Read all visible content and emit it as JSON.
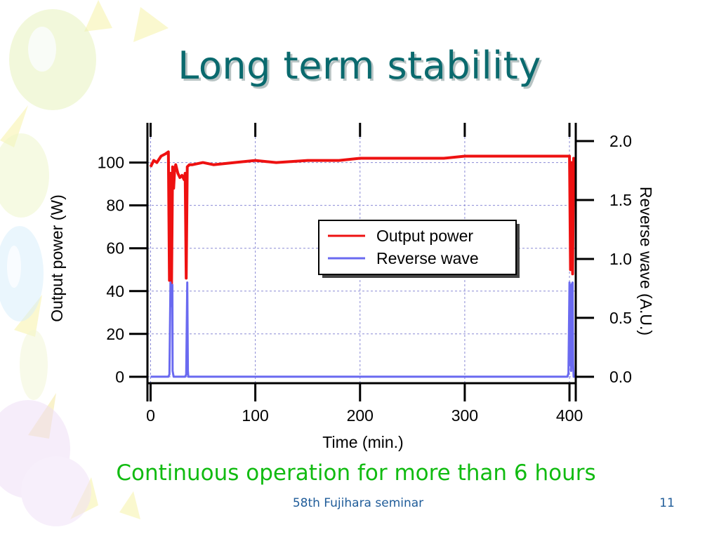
{
  "slide": {
    "title": "Long term stability",
    "caption": "Continuous operation for more than 6 hours",
    "footer_text": "58th Fujihara seminar",
    "page_number": "11"
  },
  "colors": {
    "title": "#0a6a6e",
    "caption": "#11bb11",
    "footer": "#1f5c99",
    "output_power": "#ee1111",
    "reverse_wave": "#6a6af0",
    "grid": "#8a8ad6"
  },
  "chart_data": {
    "type": "line",
    "title": "",
    "xlabel": "Time (min.)",
    "ylabel": "Output power (W)",
    "y2label": "Reverse wave (A.U.)",
    "xlim": [
      -3,
      406
    ],
    "ylim": [
      -3,
      112
    ],
    "y2lim": [
      -0.0545,
      2.036
    ],
    "x_ticks": [
      0,
      100,
      200,
      300,
      400
    ],
    "y_ticks": [
      0,
      20,
      40,
      60,
      80,
      100
    ],
    "y2_ticks": [
      "0.0",
      "0.5",
      "1.0",
      "1.5",
      "2.0"
    ],
    "grid": true,
    "legend": "center-right",
    "series": [
      {
        "name": "Output power",
        "axis": "left",
        "x": [
          0,
          3,
          6,
          10,
          14,
          17,
          18,
          19,
          20,
          21,
          22,
          23,
          24,
          26,
          28,
          30,
          32,
          33,
          34,
          35,
          37,
          40,
          50,
          60,
          80,
          100,
          120,
          150,
          180,
          200,
          220,
          250,
          280,
          300,
          330,
          360,
          380,
          395,
          398,
          399,
          400,
          401,
          402,
          403,
          404,
          405
        ],
        "y": [
          98,
          101,
          100,
          103,
          104,
          105,
          45,
          95,
          42,
          98,
          88,
          97,
          99,
          95,
          93,
          94,
          92,
          95,
          46,
          98,
          99,
          99,
          100,
          99,
          100,
          101,
          100,
          101,
          101,
          102,
          102,
          102,
          102,
          103,
          103,
          103,
          103,
          103,
          103,
          103,
          103,
          50,
          100,
          48,
          102,
          100
        ]
      },
      {
        "name": "Reverse wave",
        "axis": "right",
        "x": [
          0,
          17,
          18,
          19,
          20,
          20.8,
          21,
          22,
          33,
          34,
          35,
          35.6,
          36,
          390,
          398,
          399,
          400,
          400.7,
          401,
          401.6,
          402,
          403,
          403.5,
          404,
          405
        ],
        "y": [
          0,
          0,
          0.02,
          0.8,
          0.6,
          0.78,
          0.05,
          0,
          0,
          0.02,
          0.8,
          0.05,
          0,
          0,
          0,
          0.03,
          0.8,
          0.1,
          0.7,
          0.05,
          0.78,
          0.8,
          0.1,
          0,
          0
        ]
      }
    ]
  }
}
